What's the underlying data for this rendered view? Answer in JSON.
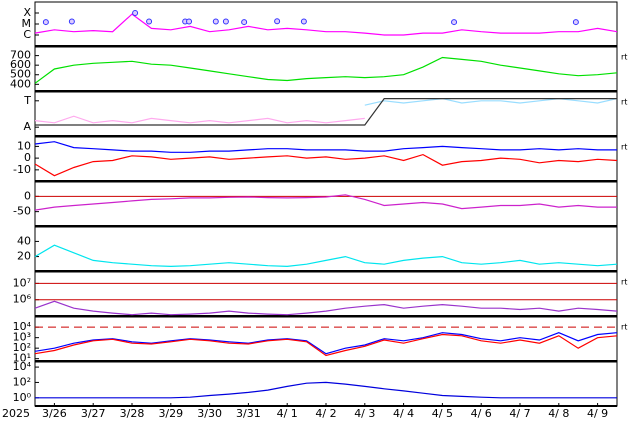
{
  "chart_data": [
    {
      "type": "line",
      "xlim": [
        0,
        15
      ],
      "log": true,
      "ylim": [
        1e-07,
        0.001
      ],
      "yticks": [
        {
          "value": 0.0001,
          "label": "X"
        },
        {
          "value": 1e-05,
          "label": "M"
        },
        {
          "value": 1e-06,
          "label": "C"
        }
      ],
      "x": [
        0,
        0.5,
        1,
        1.5,
        2,
        2.5,
        3,
        3.5,
        4,
        4.5,
        5,
        5.5,
        6,
        6.5,
        7,
        7.5,
        8,
        8.5,
        9,
        9.5,
        10,
        10.5,
        11,
        11.5,
        12,
        12.5,
        13,
        13.5,
        14,
        14.5,
        15
      ],
      "series": [
        {
          "color": "#ff00ff",
          "values": [
            1.5e-06,
            3e-06,
            2e-06,
            2.5e-06,
            2e-06,
            8e-05,
            4e-06,
            3e-06,
            6e-06,
            2e-06,
            3e-06,
            6e-06,
            3e-06,
            4e-06,
            3e-06,
            2e-06,
            2e-06,
            1.5e-06,
            1e-06,
            1e-06,
            1.5e-06,
            1.5e-06,
            3e-06,
            2e-06,
            1.5e-06,
            1.5e-06,
            1.5e-06,
            2e-06,
            2e-06,
            4e-06,
            2e-06
          ]
        }
      ],
      "markers": {
        "color": "#3333ff",
        "x": [
          0.28,
          0.95,
          2.58,
          2.94,
          3.87,
          3.97,
          4.66,
          4.92,
          5.39,
          6.24,
          6.93,
          10.8,
          13.94
        ],
        "values": [
          1.5e-05,
          1.7e-05,
          0.0001,
          1.7e-05,
          1.7e-05,
          1.7e-05,
          1.7e-05,
          1.7e-05,
          1.5e-05,
          1.8e-05,
          1.7e-05,
          1.5e-05,
          1.5e-05
        ]
      }
    },
    {
      "type": "line",
      "xlim": [
        0,
        15
      ],
      "ylim": [
        330,
        790
      ],
      "yticks": [
        700,
        600,
        500,
        400
      ],
      "side_label": "rt",
      "x": [
        0,
        0.5,
        1,
        1.5,
        2,
        2.5,
        3,
        3.5,
        4,
        4.5,
        5,
        5.5,
        6,
        6.5,
        7,
        7.5,
        8,
        8.5,
        9,
        9.5,
        10,
        10.5,
        11,
        11.5,
        12,
        12.5,
        13,
        13.5,
        14,
        14.5,
        15
      ],
      "series": [
        {
          "color": "#00e000",
          "values": [
            410,
            560,
            600,
            620,
            630,
            640,
            610,
            600,
            570,
            540,
            510,
            480,
            450,
            440,
            460,
            470,
            480,
            470,
            480,
            500,
            580,
            680,
            660,
            640,
            600,
            570,
            540,
            510,
            490,
            500,
            520
          ]
        }
      ]
    },
    {
      "type": "line",
      "xlim": [
        0,
        15
      ],
      "ylim": [
        0,
        1
      ],
      "yticks": [
        {
          "value": 0.8,
          "label": "T"
        },
        {
          "value": 0.2,
          "label": "A"
        }
      ],
      "side_label": "rt",
      "x": [
        0,
        0.5,
        1,
        1.5,
        2,
        2.5,
        3,
        3.5,
        4,
        4.5,
        5,
        5.5,
        6,
        6.5,
        7,
        7.5,
        8,
        8.5,
        9,
        9.5,
        10,
        10.5,
        11,
        11.5,
        12,
        12.5,
        13,
        13.5,
        14,
        14.5,
        15
      ],
      "series": [
        {
          "color": "#ffaaee",
          "values": [
            0.35,
            0.3,
            0.45,
            0.3,
            0.35,
            0.3,
            0.4,
            0.35,
            0.3,
            0.35,
            0.3,
            0.35,
            0.4,
            0.3,
            0.35,
            0.3,
            0.35,
            0.4,
            null,
            null,
            null,
            null,
            null,
            null,
            null,
            null,
            null,
            null,
            null,
            null,
            null
          ]
        },
        {
          "color": "#99ddff",
          "values": [
            null,
            null,
            null,
            null,
            null,
            null,
            null,
            null,
            null,
            null,
            null,
            null,
            null,
            null,
            null,
            null,
            null,
            0.7,
            0.8,
            0.75,
            0.8,
            0.85,
            0.75,
            0.8,
            0.8,
            0.75,
            0.8,
            0.85,
            0.8,
            0.75,
            0.85
          ]
        },
        {
          "color": "#333333",
          "values": [
            0.25,
            0.25,
            0.25,
            0.25,
            0.25,
            0.25,
            0.25,
            0.25,
            0.25,
            0.25,
            0.25,
            0.25,
            0.25,
            0.25,
            0.25,
            0.25,
            0.25,
            0.25,
            0.85,
            0.85,
            0.85,
            0.85,
            0.85,
            0.85,
            0.85,
            0.85,
            0.85,
            0.85,
            0.85,
            0.85,
            0.85
          ]
        }
      ]
    },
    {
      "type": "line",
      "xlim": [
        0,
        15
      ],
      "ylim": [
        -19.5,
        18
      ],
      "yticks": [
        10,
        0,
        -10
      ],
      "side_label": "rt",
      "x": [
        0,
        0.5,
        1,
        1.5,
        2,
        2.5,
        3,
        3.5,
        4,
        4.5,
        5,
        5.5,
        6,
        6.5,
        7,
        7.5,
        8,
        8.5,
        9,
        9.5,
        10,
        10.5,
        11,
        11.5,
        12,
        12.5,
        13,
        13.5,
        14,
        14.5,
        15
      ],
      "series": [
        {
          "color": "#0000ff",
          "values": [
            12,
            14,
            9,
            8,
            7,
            6,
            6,
            5,
            5,
            6,
            6,
            7,
            8,
            8,
            7,
            7,
            7,
            6,
            6,
            8,
            9,
            10,
            9,
            8,
            7,
            7,
            8,
            7,
            8,
            7,
            7
          ]
        },
        {
          "color": "#ff0000",
          "values": [
            -5,
            -15,
            -8,
            -3,
            -2,
            2,
            1,
            -1,
            0,
            1,
            -1,
            0,
            1,
            2,
            0,
            1,
            -1,
            0,
            2,
            -2,
            3,
            -6,
            -3,
            -2,
            0,
            -1,
            -4,
            -2,
            -3,
            -1,
            -2
          ]
        }
      ]
    },
    {
      "type": "line",
      "xlim": [
        0,
        15
      ],
      "ylim": [
        -97,
        47
      ],
      "yticks": [
        0,
        -50
      ],
      "hlines": [
        0
      ],
      "hline_color": "#cc0000",
      "x": [
        0,
        0.5,
        1,
        1.5,
        2,
        2.5,
        3,
        3.5,
        4,
        4.5,
        5,
        5.5,
        6,
        6.5,
        7,
        7.5,
        8,
        8.5,
        9,
        9.5,
        10,
        10.5,
        11,
        11.5,
        12,
        12.5,
        13,
        13.5,
        14,
        14.5,
        15
      ],
      "series": [
        {
          "color": "#cc22cc",
          "values": [
            -45,
            -35,
            -30,
            -25,
            -20,
            -15,
            -10,
            -8,
            -5,
            -5,
            -3,
            -2,
            -4,
            -5,
            -4,
            -2,
            5,
            -10,
            -30,
            -25,
            -20,
            -25,
            -40,
            -35,
            -30,
            -30,
            -25,
            -35,
            -30,
            -35,
            -35
          ]
        }
      ]
    },
    {
      "type": "line",
      "xlim": [
        0,
        15
      ],
      "ylim": [
        1,
        59
      ],
      "yticks": [
        40,
        20
      ],
      "x": [
        0,
        0.5,
        1,
        1.5,
        2,
        2.5,
        3,
        3.5,
        4,
        4.5,
        5,
        5.5,
        6,
        6.5,
        7,
        7.5,
        8,
        8.5,
        9,
        9.5,
        10,
        10.5,
        11,
        11.5,
        12,
        12.5,
        13,
        13.5,
        14,
        14.5,
        15
      ],
      "series": [
        {
          "color": "#00e5ee",
          "values": [
            20,
            35,
            25,
            15,
            12,
            10,
            8,
            7,
            8,
            10,
            12,
            10,
            8,
            7,
            10,
            15,
            20,
            12,
            10,
            15,
            18,
            20,
            12,
            10,
            12,
            15,
            10,
            12,
            10,
            8,
            10
          ]
        }
      ]
    },
    {
      "type": "line",
      "xlim": [
        0,
        15
      ],
      "log": true,
      "ylim": [
        100000,
        50000000
      ],
      "yticks": [
        {
          "value": 10000000,
          "label": "10⁷"
        },
        {
          "value": 1000000,
          "label": "10⁶"
        }
      ],
      "hlines": [
        10000000,
        1000000
      ],
      "hline_color": "#cc0000",
      "side_label": "rt",
      "x": [
        0,
        0.5,
        1,
        1.5,
        2,
        2.5,
        3,
        3.5,
        4,
        4.5,
        5,
        5.5,
        6,
        6.5,
        7,
        7.5,
        8,
        8.5,
        9,
        9.5,
        10,
        10.5,
        11,
        11.5,
        12,
        12.5,
        13,
        13.5,
        14,
        14.5,
        15
      ],
      "series": [
        {
          "color": "#9933cc",
          "values": [
            300000,
            800000,
            300000,
            200000,
            150000,
            120000,
            150000,
            120000,
            130000,
            150000,
            200000,
            150000,
            130000,
            120000,
            150000,
            200000,
            300000,
            400000,
            500000,
            300000,
            400000,
            500000,
            400000,
            300000,
            300000,
            250000,
            300000,
            200000,
            300000,
            250000,
            200000
          ]
        }
      ]
    },
    {
      "type": "line",
      "xlim": [
        0,
        15
      ],
      "log": true,
      "ylim": [
        6,
        93000
      ],
      "yticks": [
        {
          "value": 10000,
          "label": "10⁴"
        },
        {
          "value": 1000,
          "label": "10³"
        },
        {
          "value": 100,
          "label": "10²"
        },
        {
          "value": 10,
          "label": "10¹"
        }
      ],
      "hlines": [
        10000
      ],
      "hline_color": "#cc0000",
      "hline_dash": true,
      "side_label": "rt",
      "x": [
        0,
        0.5,
        1,
        1.5,
        2,
        2.5,
        3,
        3.5,
        4,
        4.5,
        5,
        5.5,
        6,
        6.5,
        7,
        7.5,
        8,
        8.5,
        9,
        9.5,
        10,
        10.5,
        11,
        11.5,
        12,
        12.5,
        13,
        13.5,
        14,
        14.5,
        15
      ],
      "series": [
        {
          "color": "#0000ff",
          "values": [
            50,
            100,
            300,
            600,
            800,
            400,
            300,
            500,
            800,
            600,
            400,
            300,
            600,
            800,
            500,
            30,
            100,
            200,
            800,
            500,
            1000,
            3000,
            2000,
            800,
            500,
            1000,
            600,
            3000,
            500,
            2000,
            3000
          ]
        },
        {
          "color": "#ff0000",
          "values": [
            30,
            60,
            200,
            500,
            700,
            300,
            250,
            400,
            700,
            500,
            300,
            250,
            500,
            700,
            400,
            20,
            60,
            150,
            600,
            300,
            800,
            2000,
            1500,
            500,
            300,
            600,
            300,
            1500,
            100,
            1000,
            1500
          ]
        }
      ]
    },
    {
      "type": "line",
      "xlim": [
        0,
        15
      ],
      "log": true,
      "ylim": [
        0.085,
        46000
      ],
      "yticks": [
        {
          "value": 10000,
          "label": "10⁴"
        },
        {
          "value": 100,
          "label": "10²"
        },
        {
          "value": 1,
          "label": "10⁰"
        }
      ],
      "year_label": "2025",
      "xticks": [
        {
          "value": 0.5,
          "label": "3/26"
        },
        {
          "value": 1.5,
          "label": "3/27"
        },
        {
          "value": 2.5,
          "label": "3/28"
        },
        {
          "value": 3.5,
          "label": "3/29"
        },
        {
          "value": 4.5,
          "label": "3/30"
        },
        {
          "value": 5.5,
          "label": "3/31"
        },
        {
          "value": 6.5,
          "label": "4/ 1"
        },
        {
          "value": 7.5,
          "label": "4/ 2"
        },
        {
          "value": 8.5,
          "label": "4/ 3"
        },
        {
          "value": 9.5,
          "label": "4/ 4"
        },
        {
          "value": 10.5,
          "label": "4/ 5"
        },
        {
          "value": 11.5,
          "label": "4/ 6"
        },
        {
          "value": 12.5,
          "label": "4/ 7"
        },
        {
          "value": 13.5,
          "label": "4/ 8"
        },
        {
          "value": 14.5,
          "label": "4/ 9"
        }
      ],
      "x": [
        0,
        0.5,
        1,
        1.5,
        2,
        2.5,
        3,
        3.5,
        4,
        4.5,
        5,
        5.5,
        6,
        6.5,
        7,
        7.5,
        8,
        8.5,
        9,
        9.5,
        10,
        10.5,
        11,
        11.5,
        12,
        12.5,
        13,
        13.5,
        14,
        14.5,
        15
      ],
      "series": [
        {
          "color": "#0000dd",
          "values": [
            1,
            1,
            1,
            1,
            1,
            1,
            1,
            1,
            1.2,
            2,
            3,
            5,
            10,
            30,
            80,
            100,
            60,
            30,
            15,
            8,
            4,
            2,
            1.5,
            1.2,
            1,
            1,
            1,
            1,
            1,
            1,
            1
          ]
        }
      ]
    }
  ]
}
